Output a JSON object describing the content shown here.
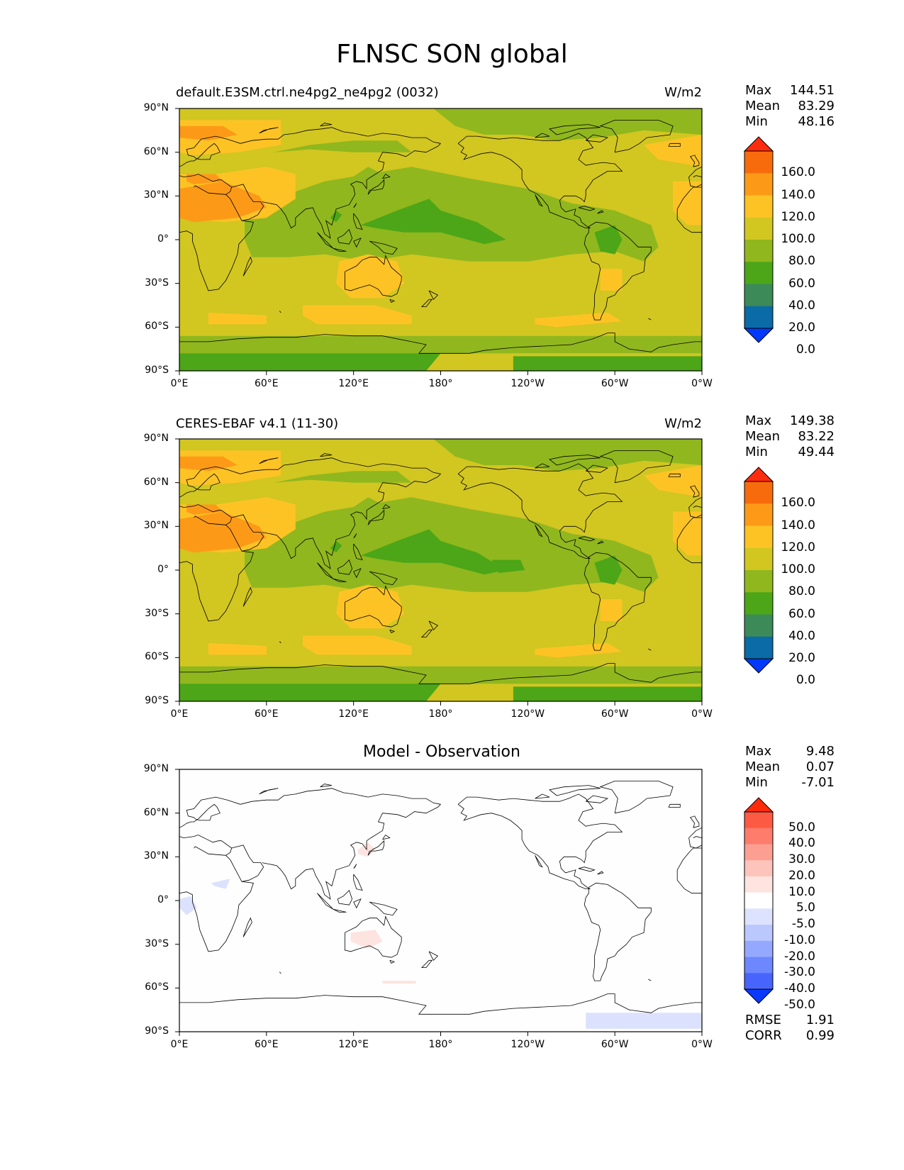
{
  "figure_title": "FLNSC SON global",
  "panels": [
    {
      "title_left": "default.E3SM.ctrl.ne4pg2_ne4pg2 (0032)",
      "title_right": "W/m2",
      "title_center": "",
      "stats": [
        {
          "label": "Max",
          "value": "144.51"
        },
        {
          "label": "Mean",
          "value": "83.29"
        },
        {
          "label": "Min",
          "value": "48.16"
        }
      ],
      "colorbar": {
        "labels": [
          "160.0",
          "140.0",
          "120.0",
          "100.0",
          "80.0",
          "60.0",
          "40.0",
          "20.0",
          "0.0"
        ],
        "colors": [
          "#fd2c0e",
          "#f86b0c",
          "#fc9a18",
          "#fdc325",
          "#d2c621",
          "#90b71e",
          "#4ca617",
          "#3c8a58",
          "#0a6ba6",
          "#0239fd"
        ]
      },
      "footer": []
    },
    {
      "title_left": "CERES-EBAF v4.1 (11-30)",
      "title_right": "W/m2",
      "title_center": "",
      "stats": [
        {
          "label": "Max",
          "value": "149.38"
        },
        {
          "label": "Mean",
          "value": "83.22"
        },
        {
          "label": "Min",
          "value": "49.44"
        }
      ],
      "colorbar": {
        "labels": [
          "160.0",
          "140.0",
          "120.0",
          "100.0",
          "80.0",
          "60.0",
          "40.0",
          "20.0",
          "0.0"
        ],
        "colors": [
          "#fd2c0e",
          "#f86b0c",
          "#fc9a18",
          "#fdc325",
          "#d2c621",
          "#90b71e",
          "#4ca617",
          "#3c8a58",
          "#0a6ba6",
          "#0239fd"
        ]
      },
      "footer": []
    },
    {
      "title_left": "",
      "title_right": "",
      "title_center": "Model - Observation",
      "stats": [
        {
          "label": "Max",
          "value": "9.48"
        },
        {
          "label": "Mean",
          "value": "0.07"
        },
        {
          "label": "Min",
          "value": "-7.01"
        }
      ],
      "colorbar": {
        "labels": [
          "50.0",
          "40.0",
          "30.0",
          "20.0",
          "10.0",
          "5.0",
          "-5.0",
          "-10.0",
          "-20.0",
          "-30.0",
          "-40.0",
          "-50.0"
        ],
        "colors": [
          "#fd2b0a",
          "#fd5a44",
          "#fd7c6c",
          "#fc9f92",
          "#fdc4bb",
          "#fee4e0",
          "#ffffff",
          "#dde3fe",
          "#bac8fd",
          "#94a9fd",
          "#6d87fd",
          "#4765fd",
          "#0939fd"
        ]
      },
      "footer": [
        {
          "label": "RMSE",
          "value": "1.91"
        },
        {
          "label": "CORR",
          "value": "0.99"
        }
      ]
    }
  ],
  "axes": {
    "x_ticks": [
      "0°E",
      "60°E",
      "120°E",
      "180°",
      "120°W",
      "60°W",
      "0°W"
    ],
    "y_ticks": [
      "90°N",
      "60°N",
      "30°N",
      "0°",
      "30°S",
      "60°S",
      "90°S"
    ]
  },
  "field_colors": {
    "base": "#d2c621",
    "orange": "#fc9a18",
    "yellow": "#fdc325",
    "light_green": "#90b71e",
    "green": "#4ca617",
    "diff_bg": "#fefefe",
    "diff_pos": "#fde4e0",
    "diff_neg": "#dce2fd"
  }
}
